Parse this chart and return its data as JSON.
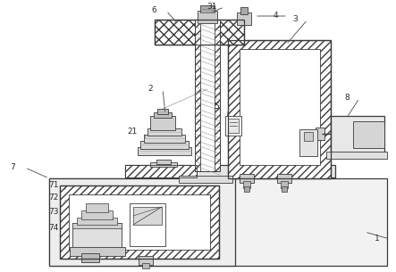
{
  "bg_color": "#ffffff",
  "line_color": "#3a3a3a",
  "label_color": "#2a2a2a",
  "fig_w": 4.43,
  "fig_h": 3.05,
  "dpi": 100
}
